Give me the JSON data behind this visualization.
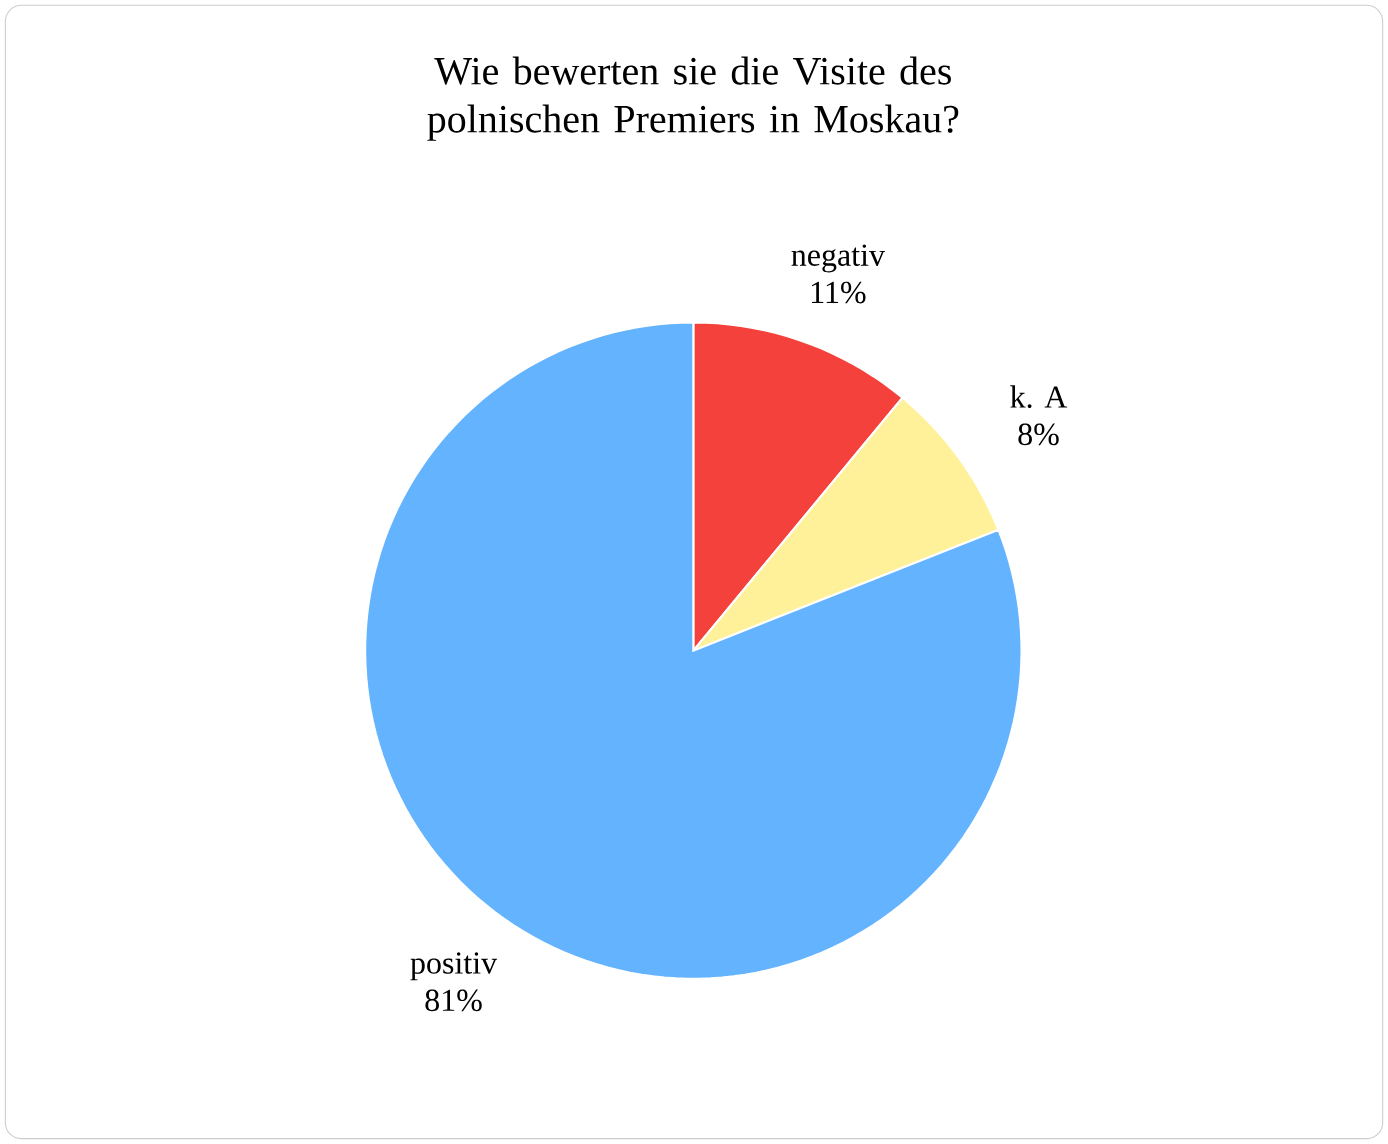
{
  "chart_data": {
    "type": "pie",
    "title": "Wie bewerten sie die Visite des polnischen Premiers in Moskau?",
    "categories": [
      "negativ",
      "k. A",
      "positiv"
    ],
    "values": [
      11,
      8,
      81
    ],
    "value_labels": [
      "11%",
      "8%",
      "81%"
    ],
    "colors": [
      "#f5413c",
      "#fff19a",
      "#63b3ff"
    ]
  }
}
